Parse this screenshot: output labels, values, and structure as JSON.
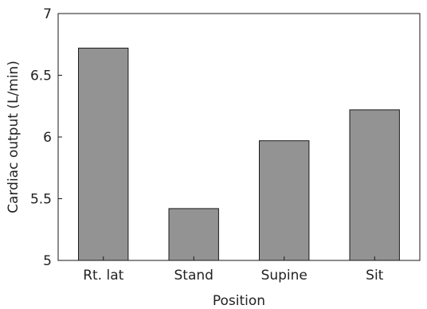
{
  "chart_data": {
    "type": "bar",
    "categories": [
      "Rt. lat",
      "Stand",
      "Supine",
      "Sit"
    ],
    "values": [
      6.72,
      5.42,
      5.97,
      6.22
    ],
    "xlabel": "Position",
    "ylabel": "Cardiac output (L/min)",
    "ylim": [
      5,
      7
    ],
    "yticks": [
      "5",
      "5.5",
      "6",
      "6.5",
      "7"
    ],
    "ytick_values": [
      5,
      5.5,
      6,
      6.5,
      7
    ],
    "grid": false,
    "bar_color": "#939393",
    "bar_edge_color": "#1a1a1a"
  }
}
